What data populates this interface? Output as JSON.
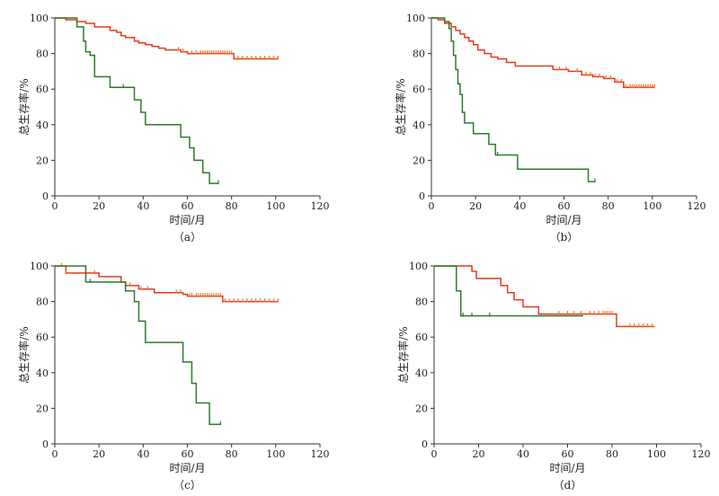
{
  "chart_data": [
    {
      "type": "line",
      "label": "（a）",
      "xlabel": "时间/月",
      "ylabel": "总生存率/%",
      "xlim": [
        0,
        120
      ],
      "ylim": [
        0,
        100
      ],
      "xticks": [
        0,
        20,
        40,
        60,
        80,
        100,
        120
      ],
      "yticks": [
        0,
        20,
        40,
        60,
        80,
        100
      ],
      "series": [
        {
          "color": "#e8391d",
          "censor_color": "#f07a2a",
          "steps": [
            [
              0,
              100
            ],
            [
              5,
              99
            ],
            [
              10,
              98
            ],
            [
              14,
              97
            ],
            [
              18,
              95
            ],
            [
              25,
              93
            ],
            [
              28,
              92
            ],
            [
              30,
              90
            ],
            [
              32,
              89
            ],
            [
              36,
              87
            ],
            [
              38,
              86
            ],
            [
              41,
              85
            ],
            [
              44,
              84
            ],
            [
              47,
              83
            ],
            [
              50,
              82
            ],
            [
              57,
              81
            ],
            [
              60,
              80
            ],
            [
              76,
              80
            ],
            [
              81,
              77
            ],
            [
              101,
              77
            ]
          ],
          "censors": [
            56,
            58,
            62,
            64,
            66,
            67,
            68,
            69,
            70,
            71,
            72,
            73,
            74,
            75,
            76,
            77,
            78,
            79,
            80,
            83,
            85,
            87,
            89,
            91,
            93,
            95,
            97,
            99,
            101
          ]
        },
        {
          "color": "#2d7a2d",
          "censor_color": "#2d7a2d",
          "steps": [
            [
              0,
              100
            ],
            [
              10,
              95
            ],
            [
              13,
              87
            ],
            [
              14,
              81
            ],
            [
              16,
              79
            ],
            [
              18,
              67
            ],
            [
              25,
              61
            ],
            [
              36,
              54
            ],
            [
              39,
              47
            ],
            [
              41,
              40
            ],
            [
              57,
              33
            ],
            [
              61,
              27
            ],
            [
              63,
              20
            ],
            [
              67,
              13
            ],
            [
              70,
              7
            ],
            [
              74,
              7
            ]
          ],
          "censors": [
            31,
            74
          ]
        }
      ]
    },
    {
      "type": "line",
      "label": "（b）",
      "xlabel": "时间/月",
      "ylabel": "总生存率/%",
      "xlim": [
        0,
        120
      ],
      "ylim": [
        0,
        100
      ],
      "xticks": [
        0,
        20,
        40,
        60,
        80,
        100,
        120
      ],
      "yticks": [
        0,
        20,
        40,
        60,
        80,
        100
      ],
      "series": [
        {
          "color": "#e8391d",
          "censor_color": "#f07a2a",
          "steps": [
            [
              0,
              100
            ],
            [
              3,
              99
            ],
            [
              6,
              97
            ],
            [
              9,
              95
            ],
            [
              11,
              93
            ],
            [
              13,
              91
            ],
            [
              15,
              89
            ],
            [
              17,
              87
            ],
            [
              19,
              85
            ],
            [
              21,
              82
            ],
            [
              24,
              80
            ],
            [
              27,
              78
            ],
            [
              30,
              77
            ],
            [
              34,
              75
            ],
            [
              38,
              73
            ],
            [
              55,
              71
            ],
            [
              62,
              70
            ],
            [
              68,
              68
            ],
            [
              73,
              67
            ],
            [
              78,
              66
            ],
            [
              83,
              64
            ],
            [
              87,
              61
            ],
            [
              101,
              61
            ]
          ],
          "censors": [
            58,
            61,
            66,
            70,
            72,
            74,
            76,
            79,
            81,
            84,
            86,
            88,
            90,
            91,
            92,
            93,
            94,
            95,
            96,
            97,
            98,
            99,
            100,
            101
          ]
        },
        {
          "color": "#2d7a2d",
          "censor_color": "#2d7a2d",
          "steps": [
            [
              0,
              100
            ],
            [
              6,
              98
            ],
            [
              8,
              94
            ],
            [
              9,
              87
            ],
            [
              10,
              79
            ],
            [
              11,
              71
            ],
            [
              12,
              63
            ],
            [
              13,
              57
            ],
            [
              14,
              47
            ],
            [
              15,
              41
            ],
            [
              19,
              35
            ],
            [
              26,
              29
            ],
            [
              29,
              23
            ],
            [
              39,
              15
            ],
            [
              71,
              8
            ],
            [
              74,
              8
            ]
          ],
          "censors": [
            12,
            14,
            30,
            74
          ]
        }
      ]
    },
    {
      "type": "line",
      "label": "（c）",
      "xlabel": "时间/月",
      "ylabel": "总生存率/%",
      "xlim": [
        0,
        120
      ],
      "ylim": [
        0,
        100
      ],
      "xticks": [
        0,
        20,
        40,
        60,
        80,
        100,
        120
      ],
      "yticks": [
        0,
        20,
        40,
        60,
        80,
        100
      ],
      "series": [
        {
          "color": "#e8391d",
          "censor_color": "#f07a2a",
          "steps": [
            [
              0,
              100
            ],
            [
              5,
              96
            ],
            [
              20,
              94
            ],
            [
              30,
              91
            ],
            [
              32,
              89
            ],
            [
              38,
              87
            ],
            [
              45,
              85
            ],
            [
              58,
              84
            ],
            [
              60,
              83
            ],
            [
              76,
              83
            ],
            [
              76,
              80
            ],
            [
              101,
              80
            ]
          ],
          "censors": [
            3,
            5,
            18,
            34,
            39,
            42,
            55,
            57,
            61,
            62,
            64,
            65,
            66,
            67,
            68,
            69,
            70,
            71,
            72,
            73,
            74,
            75,
            77,
            79,
            81,
            83,
            85,
            87,
            89,
            91,
            93,
            95,
            97,
            99,
            101
          ]
        },
        {
          "color": "#2d7a2d",
          "censor_color": "#2d7a2d",
          "steps": [
            [
              0,
              100
            ],
            [
              14,
              91
            ],
            [
              32,
              86
            ],
            [
              36,
              80
            ],
            [
              38,
              69
            ],
            [
              41,
              57
            ],
            [
              58,
              46
            ],
            [
              62,
              34
            ],
            [
              64,
              23
            ],
            [
              70,
              11
            ],
            [
              75,
              11
            ]
          ],
          "censors": [
            16,
            32,
            75
          ]
        }
      ]
    },
    {
      "type": "line",
      "label": "（d）",
      "xlabel": "时间/月",
      "ylabel": "总生存率/%",
      "xlim": [
        0,
        120
      ],
      "ylim": [
        0,
        100
      ],
      "xticks": [
        0,
        20,
        40,
        60,
        80,
        100,
        120
      ],
      "yticks": [
        0,
        20,
        40,
        60,
        80,
        100
      ],
      "series": [
        {
          "color": "#e8391d",
          "censor_color": "#f07a2a",
          "steps": [
            [
              0,
              100
            ],
            [
              17,
              97
            ],
            [
              19,
              93
            ],
            [
              30,
              89
            ],
            [
              33,
              85
            ],
            [
              36,
              81
            ],
            [
              40,
              77
            ],
            [
              47,
              73
            ],
            [
              82,
              73
            ],
            [
              82,
              66
            ],
            [
              99,
              66
            ]
          ],
          "censors": [
            56,
            60,
            63,
            66,
            70,
            72,
            74,
            76,
            77,
            78,
            79,
            80,
            88,
            90,
            92,
            94,
            96,
            98
          ]
        },
        {
          "color": "#2d7a2d",
          "censor_color": "#2d7a2d",
          "steps": [
            [
              0,
              100
            ],
            [
              9,
              100
            ],
            [
              10,
              86
            ],
            [
              12,
              72
            ],
            [
              67,
              72
            ]
          ],
          "censors": [
            13,
            17,
            25
          ]
        }
      ]
    }
  ]
}
